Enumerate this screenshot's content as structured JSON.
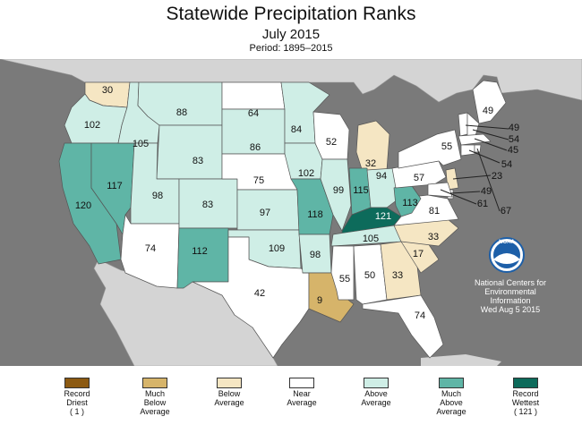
{
  "header": {
    "title": "Statewide Precipitation Ranks",
    "subtitle": "July 2015",
    "period": "Period: 1895–2015"
  },
  "colors": {
    "record_driest": "#8c5a12",
    "much_below": "#d6b46a",
    "below": "#f5e6c3",
    "near": "#ffffff",
    "above": "#cfeee6",
    "much_above": "#5fb5a6",
    "record_wettest": "#0d6b5b",
    "ocean": "#7a7a7a",
    "foreign_land": "#d4d4d4"
  },
  "legend": [
    {
      "label": "Record\nDriest\n( 1 )",
      "color": "#8c5a12"
    },
    {
      "label": "Much\nBelow\nAverage",
      "color": "#d6b46a"
    },
    {
      "label": "Below\nAverage",
      "color": "#f5e6c3"
    },
    {
      "label": "Near\nAverage",
      "color": "#ffffff"
    },
    {
      "label": "Above\nAverage",
      "color": "#cfeee6"
    },
    {
      "label": "Much\nAbove\nAverage",
      "color": "#5fb5a6"
    },
    {
      "label": "Record\nWettest\n( 121 )",
      "color": "#0d6b5b"
    }
  ],
  "states": [
    {
      "state": "WA",
      "rank": "30",
      "category": "below"
    },
    {
      "state": "OR",
      "rank": "102",
      "category": "above"
    },
    {
      "state": "CA",
      "rank": "120",
      "category": "much_above"
    },
    {
      "state": "NV",
      "rank": "117",
      "category": "much_above"
    },
    {
      "state": "ID",
      "rank": "105",
      "category": "above"
    },
    {
      "state": "MT",
      "rank": "88",
      "category": "above"
    },
    {
      "state": "WY",
      "rank": "83",
      "category": "above"
    },
    {
      "state": "UT",
      "rank": "98",
      "category": "above"
    },
    {
      "state": "AZ",
      "rank": "74",
      "category": "near"
    },
    {
      "state": "CO",
      "rank": "83",
      "category": "above"
    },
    {
      "state": "NM",
      "rank": "112",
      "category": "much_above"
    },
    {
      "state": "ND",
      "rank": "64",
      "category": "near"
    },
    {
      "state": "SD",
      "rank": "86",
      "category": "above"
    },
    {
      "state": "NE",
      "rank": "75",
      "category": "near"
    },
    {
      "state": "KS",
      "rank": "97",
      "category": "above"
    },
    {
      "state": "OK",
      "rank": "109",
      "category": "above"
    },
    {
      "state": "TX",
      "rank": "42",
      "category": "near"
    },
    {
      "state": "MN",
      "rank": "84",
      "category": "above"
    },
    {
      "state": "IA",
      "rank": "102",
      "category": "above"
    },
    {
      "state": "MO",
      "rank": "118",
      "category": "much_above"
    },
    {
      "state": "AR",
      "rank": "98",
      "category": "above"
    },
    {
      "state": "LA",
      "rank": "9",
      "category": "much_below"
    },
    {
      "state": "WI",
      "rank": "52",
      "category": "near"
    },
    {
      "state": "IL",
      "rank": "99",
      "category": "above"
    },
    {
      "state": "MI",
      "rank": "32",
      "category": "below"
    },
    {
      "state": "IN",
      "rank": "115",
      "category": "much_above"
    },
    {
      "state": "OH",
      "rank": "94",
      "category": "above"
    },
    {
      "state": "KY",
      "rank": "121",
      "category": "record_wettest"
    },
    {
      "state": "TN",
      "rank": "105",
      "category": "above"
    },
    {
      "state": "MS",
      "rank": "55",
      "category": "near"
    },
    {
      "state": "AL",
      "rank": "50",
      "category": "near"
    },
    {
      "state": "GA",
      "rank": "33",
      "category": "below"
    },
    {
      "state": "FL",
      "rank": "74",
      "category": "near"
    },
    {
      "state": "SC",
      "rank": "17",
      "category": "below"
    },
    {
      "state": "NC",
      "rank": "33",
      "category": "below"
    },
    {
      "state": "VA",
      "rank": "81",
      "category": "near"
    },
    {
      "state": "WV",
      "rank": "113",
      "category": "much_above"
    },
    {
      "state": "PA",
      "rank": "57",
      "category": "near"
    },
    {
      "state": "NY",
      "rank": "55",
      "category": "near"
    },
    {
      "state": "ME",
      "rank": "49",
      "category": "near"
    },
    {
      "state": "VT",
      "rank": "49",
      "category": "near"
    },
    {
      "state": "NH",
      "rank": "54",
      "category": "near"
    },
    {
      "state": "MA",
      "rank": "45",
      "category": "near"
    },
    {
      "state": "CT",
      "rank": "54",
      "category": "near"
    },
    {
      "state": "NJ",
      "rank": "23",
      "category": "below"
    },
    {
      "state": "DE",
      "rank": "49",
      "category": "near"
    },
    {
      "state": "MD",
      "rank": "61",
      "category": "near"
    },
    {
      "state": "RI",
      "rank": "67",
      "category": "near"
    }
  ],
  "noaa": {
    "logo_text": "NOAA",
    "credit": "National Centers for\nEnvironmental\nInformation\nWed Aug  5 2015"
  }
}
